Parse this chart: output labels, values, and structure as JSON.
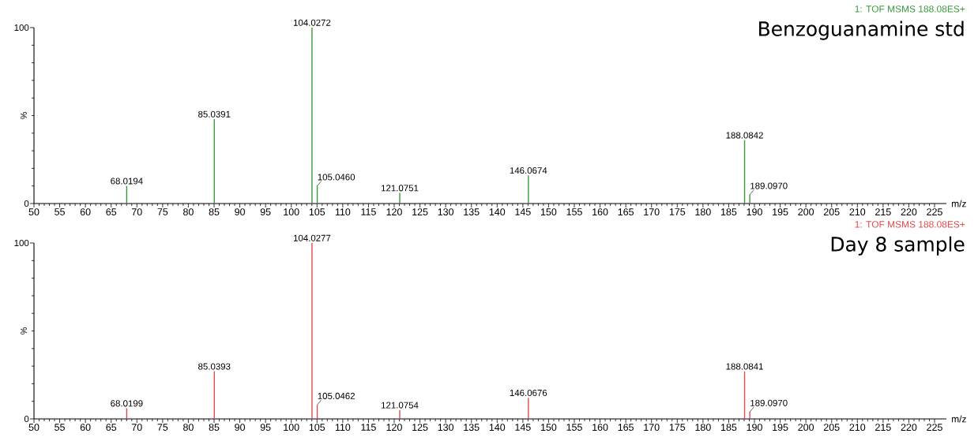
{
  "chart_data": [
    {
      "type": "bar",
      "title": "Benzoguanamine std",
      "subtitle": "1: TOF MSMS 188.08ES+",
      "xlabel": "m/z",
      "ylabel": "%",
      "color": "#3a9a3a",
      "x": [
        68.0194,
        85.0391,
        104.0272,
        105.046,
        121.0751,
        146.0674,
        188.0842,
        189.097
      ],
      "values": [
        10,
        48,
        100,
        10,
        6,
        16,
        36,
        5
      ],
      "xlim": [
        50,
        227.3
      ],
      "ylim": [
        0,
        100
      ],
      "xticks": [
        50,
        55,
        60,
        65,
        70,
        75,
        80,
        85,
        90,
        95,
        100,
        105,
        110,
        115,
        120,
        125,
        130,
        135,
        140,
        145,
        150,
        155,
        160,
        165,
        170,
        175,
        180,
        185,
        190,
        195,
        200,
        205,
        210,
        215,
        220,
        225
      ],
      "yticks": [
        0,
        100
      ],
      "annotations": [
        {
          "text": "68.0194",
          "x": 68.0194,
          "y": 10
        },
        {
          "text": "85.0391",
          "x": 85.0391,
          "y": 48
        },
        {
          "text": "104.0272",
          "x": 104.0272,
          "y": 100
        },
        {
          "text": "105.0460",
          "x": 105.046,
          "y": 10
        },
        {
          "text": "121.0751",
          "x": 121.0751,
          "y": 6
        },
        {
          "text": "146.0674",
          "x": 146.0674,
          "y": 16
        },
        {
          "text": "188.0842",
          "x": 188.0842,
          "y": 36
        },
        {
          "text": "189.0970",
          "x": 189.097,
          "y": 5
        }
      ]
    },
    {
      "type": "bar",
      "title": "Day 8 sample",
      "subtitle": "1: TOF MSMS 188.08ES+",
      "xlabel": "m/z",
      "ylabel": "%",
      "color": "#e04b4b",
      "x": [
        68.0199,
        85.0393,
        104.0277,
        105.0462,
        121.0754,
        146.0676,
        188.0841,
        189.097
      ],
      "values": [
        6,
        27,
        100,
        8,
        5,
        12,
        27,
        4
      ],
      "xlim": [
        50,
        227.3
      ],
      "ylim": [
        0,
        100
      ],
      "xticks": [
        50,
        55,
        60,
        65,
        70,
        75,
        80,
        85,
        90,
        95,
        100,
        105,
        110,
        115,
        120,
        125,
        130,
        135,
        140,
        145,
        150,
        155,
        160,
        165,
        170,
        175,
        180,
        185,
        190,
        195,
        200,
        205,
        210,
        215,
        220,
        225
      ],
      "yticks": [
        0,
        100
      ],
      "annotations": [
        {
          "text": "68.0199",
          "x": 68.0199,
          "y": 6
        },
        {
          "text": "85.0393",
          "x": 85.0393,
          "y": 27
        },
        {
          "text": "104.0277",
          "x": 104.0277,
          "y": 100
        },
        {
          "text": "105.0462",
          "x": 105.0462,
          "y": 8
        },
        {
          "text": "121.0754",
          "x": 121.0754,
          "y": 5
        },
        {
          "text": "146.0676",
          "x": 146.0676,
          "y": 12
        },
        {
          "text": "188.0841",
          "x": 188.0841,
          "y": 27
        },
        {
          "text": "189.0970",
          "x": 189.097,
          "y": 4
        }
      ]
    }
  ]
}
